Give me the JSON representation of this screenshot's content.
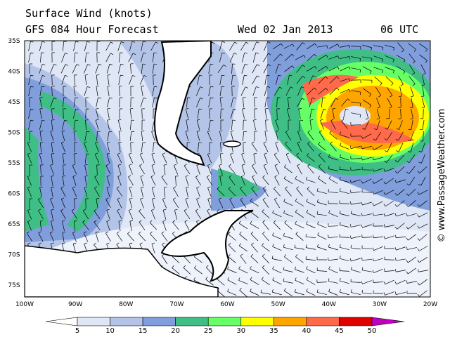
{
  "header": {
    "title": "Surface Wind (knots)",
    "subtitle": "GFS 084 Hour Forecast",
    "date": "Wed 02 Jan 2013",
    "time": "06 UTC"
  },
  "lat_labels": [
    "35S",
    "40S",
    "45S",
    "50S",
    "55S",
    "60S",
    "65S",
    "70S",
    "75S"
  ],
  "lon_labels": [
    "100W",
    "90W",
    "80W",
    "70W",
    "60W",
    "50W",
    "40W",
    "30W",
    "20W"
  ],
  "colorbar": {
    "labels": [
      "5",
      "10",
      "15",
      "20",
      "25",
      "30",
      "35",
      "40",
      "45",
      "50"
    ],
    "colors": [
      "#ffffff",
      "#dfe7f6",
      "#b3c4e8",
      "#7f9edb",
      "#3fbf86",
      "#66ff66",
      "#ffff00",
      "#ffa500",
      "#ff6a4a",
      "#e00000",
      "#c000c0"
    ]
  },
  "credit": "© www.PassageWeather.com"
}
